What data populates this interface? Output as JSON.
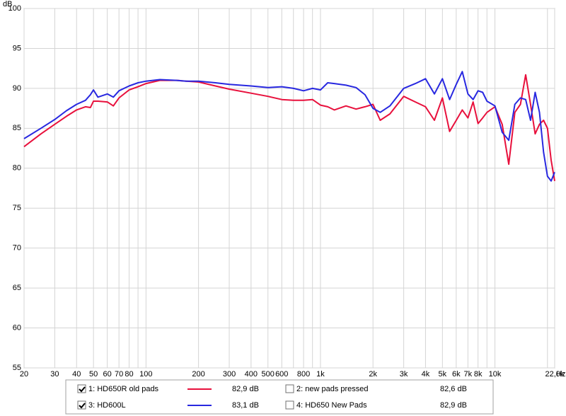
{
  "chart_data": {
    "type": "line",
    "xscale": "log",
    "yunit": "dB",
    "xunit": "Hz",
    "grid": true,
    "xlim": [
      20,
      22000
    ],
    "ylim": [
      55,
      100
    ],
    "yticks": [
      55,
      60,
      65,
      70,
      75,
      80,
      85,
      90,
      95,
      100
    ],
    "xticks": [
      20,
      30,
      40,
      50,
      60,
      70,
      80,
      100,
      200,
      300,
      400,
      500,
      600,
      800,
      {
        "value": 1000,
        "label": "1k"
      },
      {
        "value": 2000,
        "label": "2k"
      },
      {
        "value": 3000,
        "label": "3k"
      },
      {
        "value": 4000,
        "label": "4k"
      },
      {
        "value": 5000,
        "label": "5k"
      },
      {
        "value": 6000,
        "label": "6k"
      },
      {
        "value": 7000,
        "label": "7k"
      },
      {
        "value": 8000,
        "label": "8k"
      },
      {
        "value": 10000,
        "label": "10k"
      },
      {
        "value": 22000,
        "label": "22,0k"
      }
    ],
    "xgrid_minor": [
      90,
      700,
      900,
      9000,
      20000
    ],
    "x": [
      20,
      25,
      30,
      35,
      40,
      45,
      48,
      50,
      53,
      60,
      65,
      70,
      80,
      90,
      100,
      120,
      150,
      170,
      200,
      250,
      300,
      400,
      500,
      600,
      700,
      800,
      900,
      1000,
      1100,
      1200,
      1400,
      1600,
      1800,
      2000,
      2200,
      2500,
      3000,
      3500,
      4000,
      4500,
      5000,
      5500,
      6000,
      6500,
      7000,
      7500,
      8000,
      8500,
      9000,
      10000,
      11000,
      12000,
      13000,
      14000,
      15000,
      16000,
      17000,
      18000,
      19000,
      20000,
      21000,
      22000
    ],
    "series": [
      {
        "name": "1: HD650R old pads",
        "color": "#e8103c",
        "checked": true,
        "reading": "82,9 dB",
        "values": [
          82.7,
          84.3,
          85.5,
          86.5,
          87.3,
          87.7,
          87.6,
          88.4,
          88.4,
          88.3,
          87.8,
          88.8,
          89.8,
          90.2,
          90.6,
          91.0,
          91.0,
          90.9,
          90.8,
          90.3,
          89.9,
          89.4,
          89.0,
          88.6,
          88.5,
          88.5,
          88.6,
          87.9,
          87.7,
          87.3,
          87.8,
          87.4,
          87.7,
          88.0,
          86.0,
          86.8,
          89.0,
          88.3,
          87.7,
          86.0,
          88.8,
          84.6,
          86.0,
          87.3,
          86.3,
          88.3,
          85.6,
          86.3,
          87.0,
          87.7,
          85.5,
          80.5,
          87.0,
          88.0,
          91.7,
          88.0,
          84.3,
          85.5,
          86.0,
          85.0,
          81.0,
          78.4
        ]
      },
      {
        "name": "2: new pads pressed",
        "color": "#c000c0",
        "checked": false,
        "reading": "82,6 dB"
      },
      {
        "name": "3: HD600L",
        "color": "#2828e0",
        "checked": true,
        "reading": "83,1 dB",
        "values": [
          83.7,
          85.0,
          86.1,
          87.2,
          88.0,
          88.5,
          89.2,
          89.8,
          88.9,
          89.3,
          88.9,
          89.7,
          90.3,
          90.7,
          90.9,
          91.1,
          91.0,
          90.9,
          90.9,
          90.7,
          90.5,
          90.3,
          90.1,
          90.2,
          90.0,
          89.7,
          90.0,
          89.8,
          90.7,
          90.6,
          90.4,
          90.1,
          89.2,
          87.5,
          87.0,
          87.8,
          90.0,
          90.6,
          91.2,
          89.3,
          91.2,
          88.6,
          90.5,
          92.1,
          89.3,
          88.6,
          89.7,
          89.5,
          88.4,
          87.8,
          84.5,
          83.5,
          88.0,
          88.8,
          88.6,
          86.0,
          89.5,
          87.0,
          82.0,
          79.0,
          78.4,
          79.5
        ]
      },
      {
        "name": "4: HD650 New Pads",
        "color": "#008000",
        "checked": false,
        "reading": "82,9 dB"
      }
    ]
  }
}
